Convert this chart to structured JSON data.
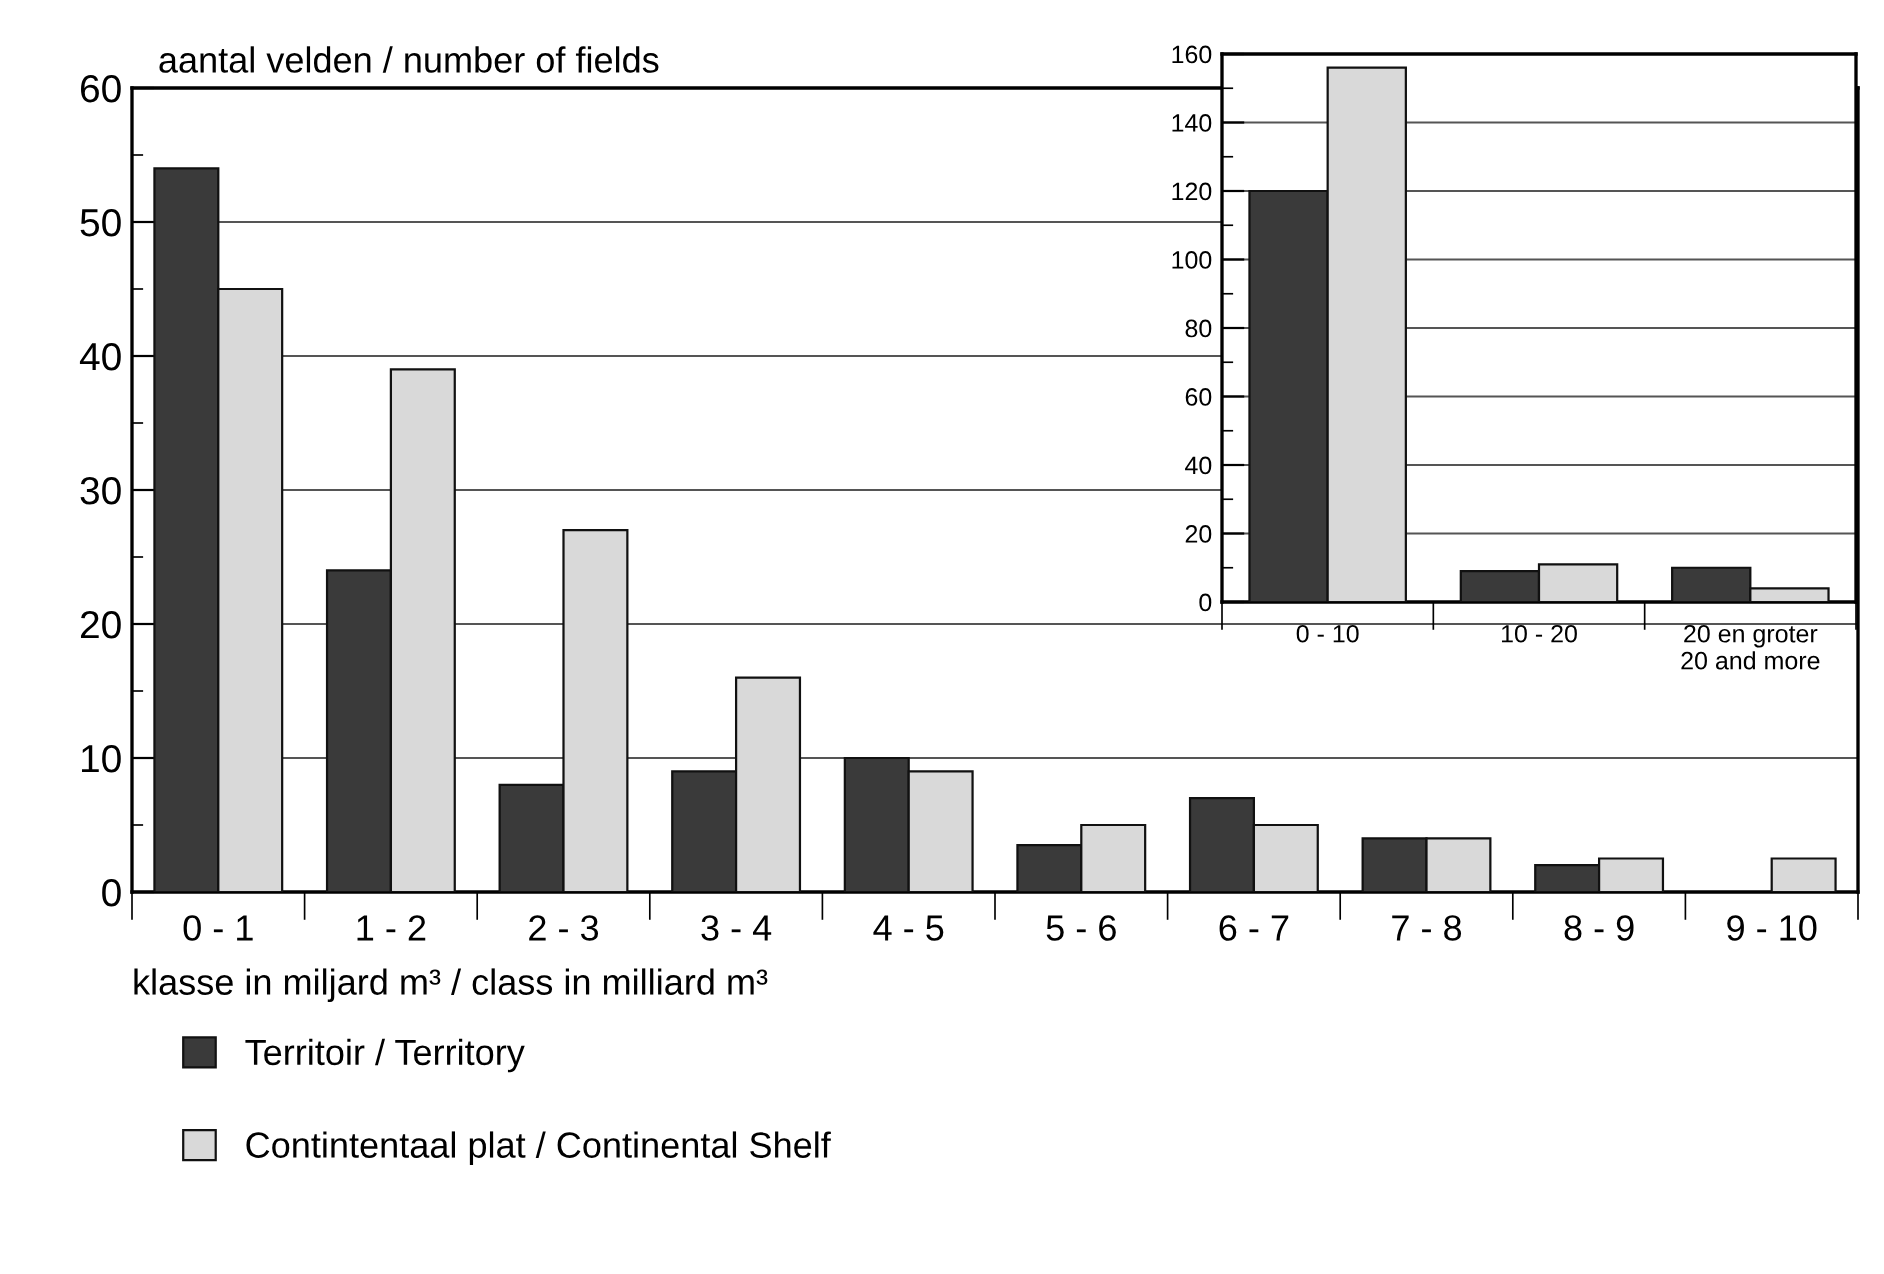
{
  "chart_data": [
    {
      "type": "bar",
      "ylabel": "aantal velden / number of fields",
      "xlabel": "klasse in miljard m³ / class in milliard m³",
      "categories": [
        "0 - 1",
        "1 - 2",
        "2 - 3",
        "3 - 4",
        "4 - 5",
        "5 - 6",
        "6 - 7",
        "7 - 8",
        "8 - 9",
        "9 - 10"
      ],
      "series": [
        {
          "name": "Territoir / Territory",
          "color": "#3a3a3a",
          "values": [
            54,
            24,
            8,
            9,
            10,
            3.5,
            7,
            4,
            2,
            0
          ]
        },
        {
          "name": "Contintentaal plat / Continental Shelf",
          "color": "#d9d9d9",
          "values": [
            45,
            39,
            27,
            16,
            9,
            5,
            5,
            4,
            2.5,
            2.5
          ]
        }
      ],
      "ylim": [
        0,
        60
      ],
      "yticks": [
        0,
        10,
        20,
        30,
        40,
        50,
        60
      ],
      "grid": "y",
      "legend": "bottom left"
    },
    {
      "type": "bar",
      "categories": [
        "0 - 10",
        "10 - 20",
        "20 en groter\n20 and more"
      ],
      "series": [
        {
          "color": "#3a3a3a",
          "values": [
            120,
            9,
            10
          ]
        },
        {
          "color": "#d9d9d9",
          "values": [
            156,
            11,
            4
          ]
        }
      ],
      "ylim": [
        0,
        160
      ],
      "yticks": [
        0,
        20,
        40,
        60,
        80,
        100,
        120,
        140,
        160
      ],
      "grid": "y"
    }
  ]
}
